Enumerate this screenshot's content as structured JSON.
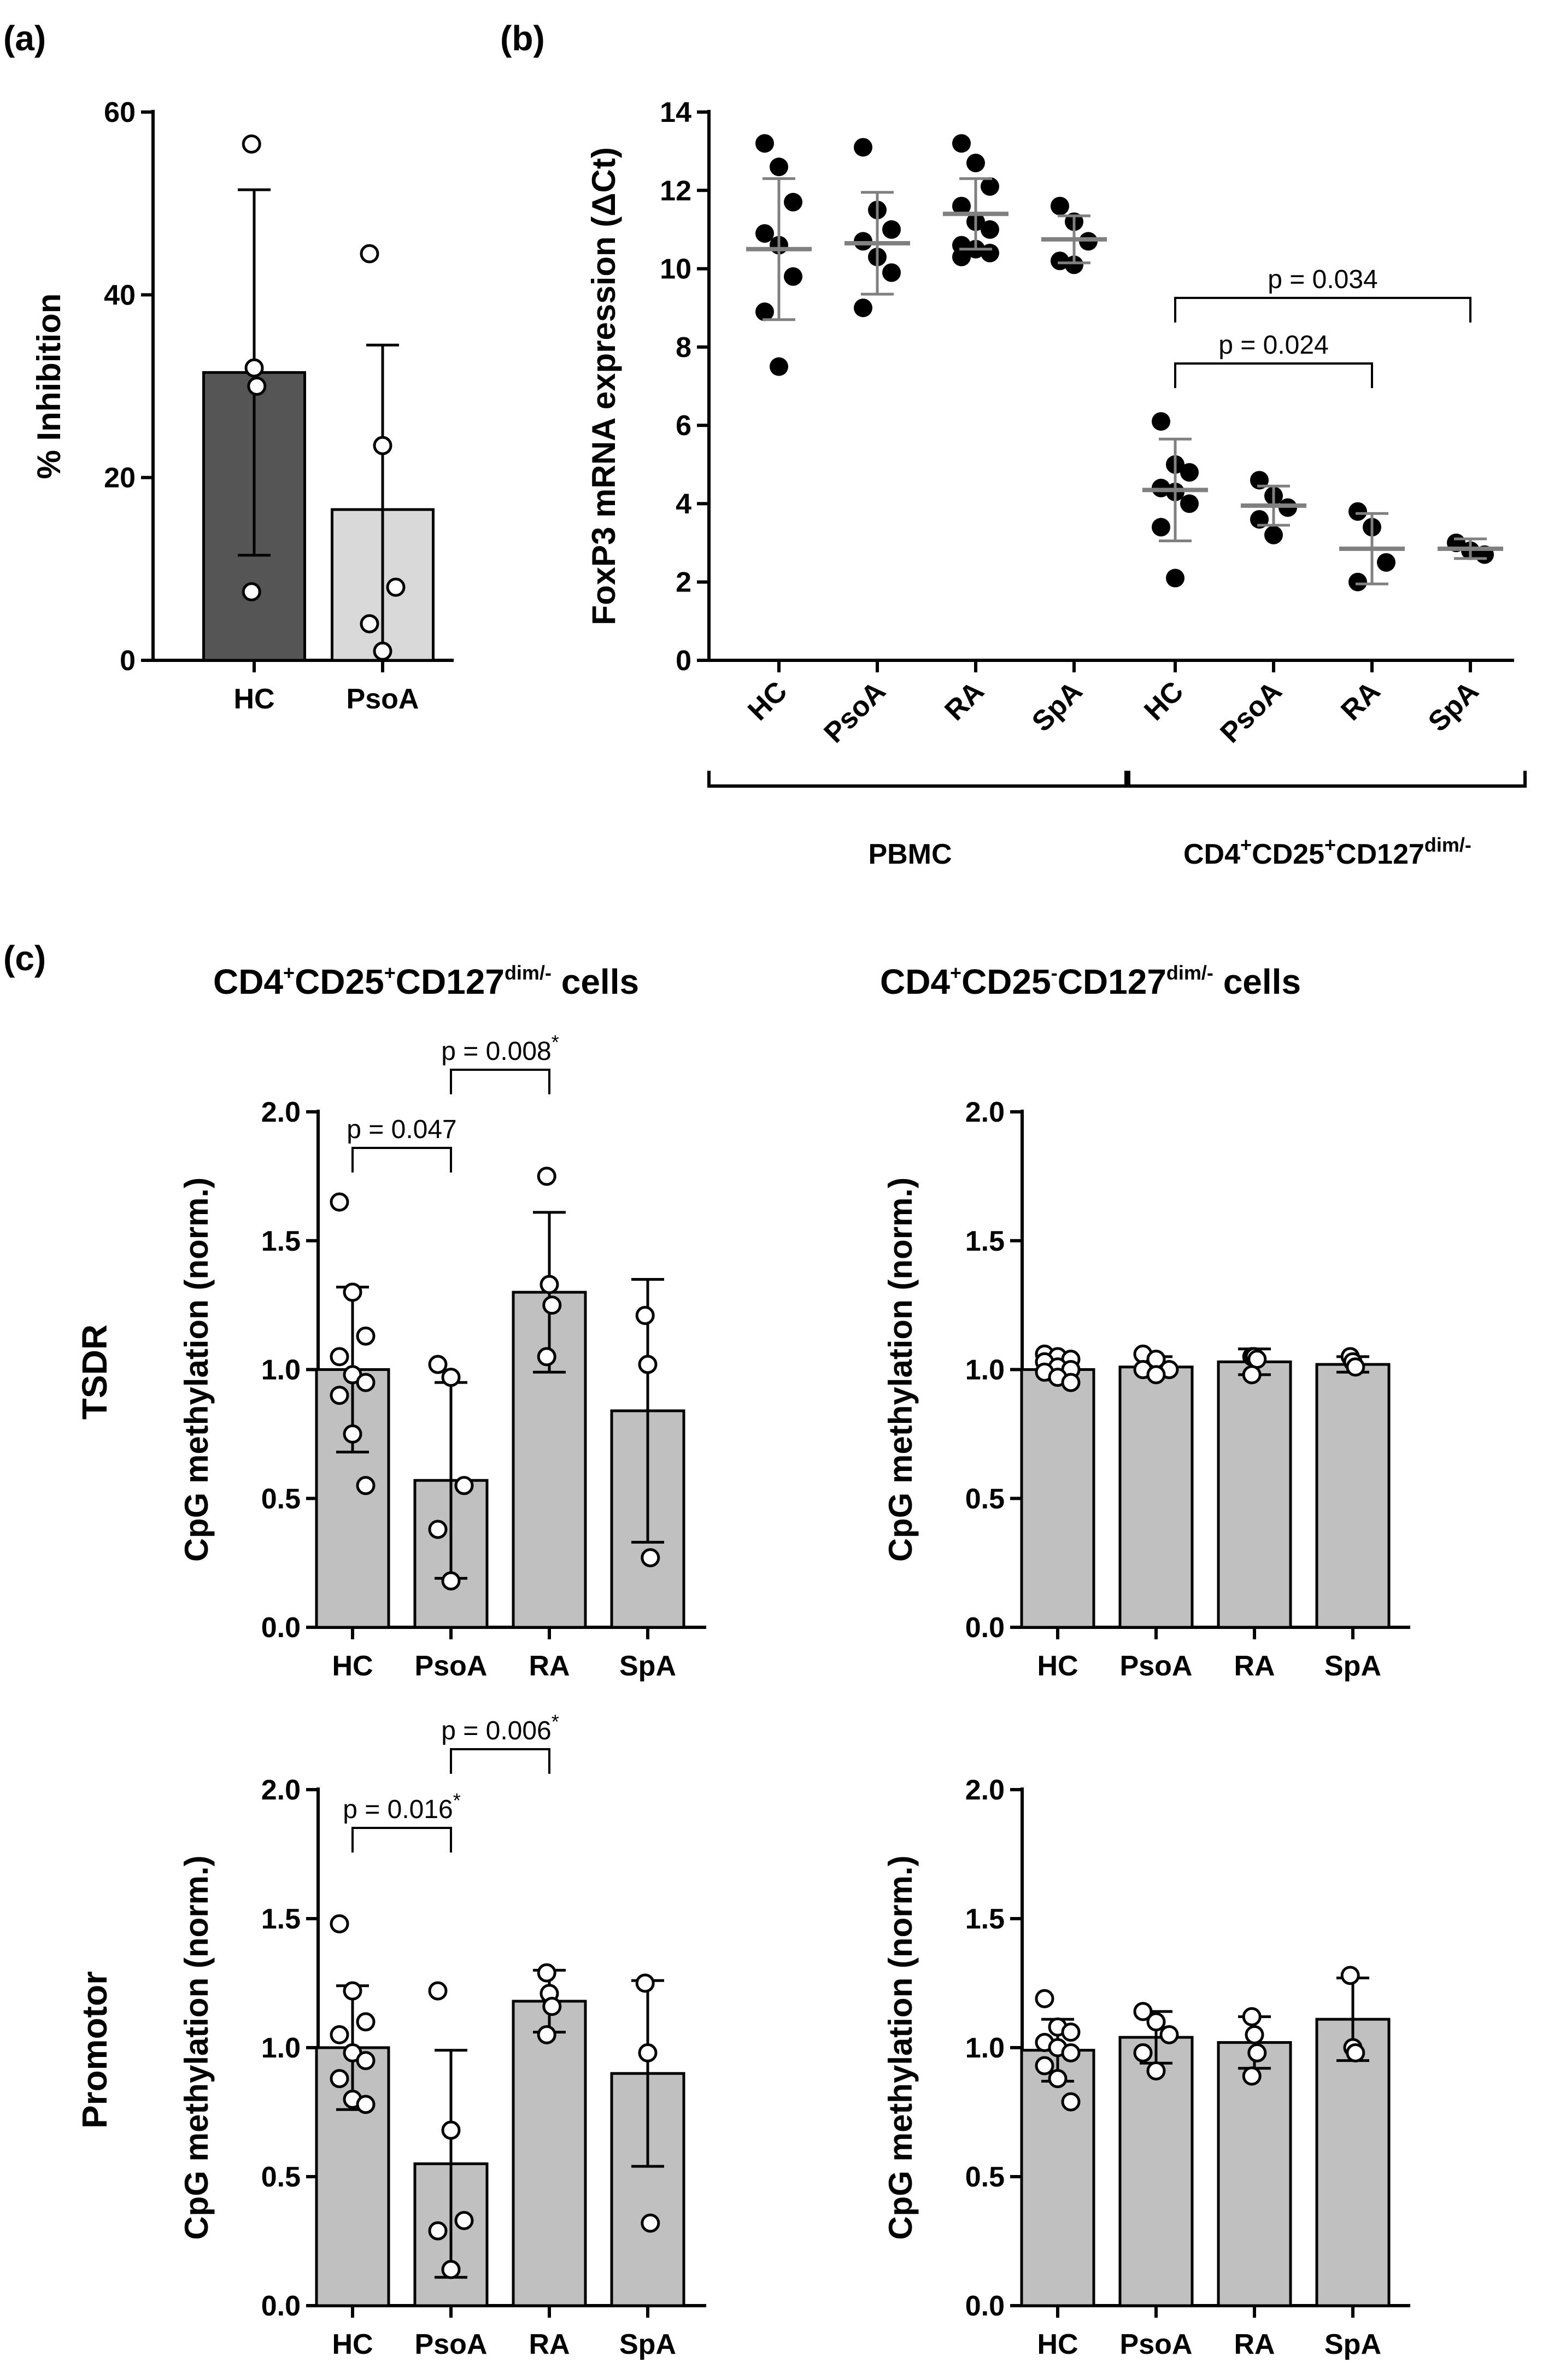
{
  "figure": {
    "panel_labels": [
      "(a)",
      "(b)",
      "(c)"
    ],
    "row_labels": [
      "TSDR",
      "Promotor"
    ],
    "column_headers": [
      {
        "base": "CD4",
        "sup1": "+",
        "mid": "CD25",
        "sup2": "+",
        "base2": "CD127",
        "sup3": "dim/-",
        "tail": " cells"
      },
      {
        "base": "CD4",
        "sup1": "+",
        "mid": "CD25",
        "sup2": "-",
        "base2": "CD127",
        "sup3": "dim/-",
        "tail": " cells"
      }
    ]
  },
  "colors": {
    "dark_bar": "#555555",
    "light_bar": "#d9d9d9",
    "grey_bar": "#c0c0c0",
    "mean_line": "#808080"
  },
  "chart_data": [
    {
      "id": "a",
      "type": "bar",
      "title": "",
      "ylabel": "% Inhibition",
      "ylim": [
        0,
        60
      ],
      "yticks": [
        0,
        20,
        40,
        60
      ],
      "categories": [
        "HC",
        "PsoA"
      ],
      "values": [
        31.5,
        16.5
      ],
      "sd": [
        20.0,
        18.0
      ],
      "points": [
        [
          56.5,
          32.0,
          30.0,
          7.5
        ],
        [
          44.5,
          23.5,
          8.0,
          4.0,
          1.0
        ]
      ]
    },
    {
      "id": "b",
      "type": "scatter",
      "ylabel": "FoxP3 mRNA expression (ΔCt)",
      "ylim": [
        0,
        14
      ],
      "yticks": [
        0,
        2,
        4,
        6,
        8,
        10,
        12,
        14
      ],
      "categories": [
        "HC",
        "PsoA",
        "RA",
        "SpA",
        "HC",
        "PsoA",
        "RA",
        "SpA"
      ],
      "groups": [
        "PBMC",
        "CD4+CD25+CD127dim/-"
      ],
      "group_labels": {
        "pbmc": "PBMC",
        "treg_base": "CD4",
        "treg_sup1": "+",
        "treg_mid": "CD25",
        "treg_sup2": "+",
        "treg_base2": "CD127",
        "treg_sup3": "dim/-"
      },
      "means": [
        10.5,
        10.65,
        11.4,
        10.75,
        4.35,
        3.95,
        2.85,
        2.85
      ],
      "sd": [
        1.8,
        1.3,
        0.9,
        0.6,
        1.3,
        0.5,
        0.9,
        0.25
      ],
      "points": [
        [
          13.2,
          12.6,
          11.7,
          10.9,
          10.6,
          9.8,
          8.9,
          7.5
        ],
        [
          13.1,
          11.5,
          11.0,
          10.7,
          10.3,
          9.9,
          9.0
        ],
        [
          13.2,
          12.7,
          12.1,
          11.6,
          11.2,
          11.0,
          10.6,
          10.5,
          10.4,
          10.3
        ],
        [
          11.6,
          11.2,
          10.7,
          10.2,
          10.1
        ],
        [
          6.1,
          5.0,
          4.8,
          4.4,
          4.3,
          4.0,
          3.4,
          2.1
        ],
        [
          4.6,
          4.2,
          3.9,
          3.6,
          3.2
        ],
        [
          3.8,
          3.4,
          2.5,
          2.0
        ],
        [
          3.0,
          2.8,
          2.7
        ]
      ],
      "annotations": [
        {
          "text": "p = 0.024",
          "from": 4,
          "to": 6
        },
        {
          "text": "p = 0.034",
          "from": 4,
          "to": 7
        }
      ]
    },
    {
      "id": "c_tsdr_pos",
      "type": "bar",
      "ylabel": "CpG methylation (norm.)",
      "ylim": [
        0,
        2.0
      ],
      "yticks": [
        "0.0",
        "0.5",
        "1.0",
        "1.5",
        "2.0"
      ],
      "categories": [
        "HC",
        "PsoA",
        "RA",
        "SpA"
      ],
      "values": [
        1.0,
        0.57,
        1.3,
        0.84
      ],
      "sd": [
        0.32,
        0.38,
        0.31,
        0.51
      ],
      "points": [
        [
          1.65,
          1.3,
          1.13,
          1.05,
          0.98,
          0.95,
          0.9,
          0.75,
          0.55
        ],
        [
          1.02,
          0.97,
          0.55,
          0.38,
          0.18
        ],
        [
          1.75,
          1.33,
          1.25,
          1.05
        ],
        [
          1.21,
          1.02,
          0.27
        ]
      ],
      "annotations": [
        {
          "text": "p = 0.047",
          "star": "",
          "from": 0,
          "to": 1
        },
        {
          "text": "p = 0.008",
          "star": "*",
          "from": 1,
          "to": 2
        }
      ]
    },
    {
      "id": "c_tsdr_neg",
      "type": "bar",
      "ylabel": "CpG methylation (norm.)",
      "ylim": [
        0,
        2.0
      ],
      "yticks": [
        "0.0",
        "0.5",
        "1.0",
        "1.5",
        "2.0"
      ],
      "categories": [
        "HC",
        "PsoA",
        "RA",
        "SpA"
      ],
      "values": [
        1.0,
        1.01,
        1.03,
        1.02
      ],
      "sd": [
        0.04,
        0.04,
        0.05,
        0.03
      ],
      "points": [
        [
          1.06,
          1.05,
          1.04,
          1.03,
          1.01,
          1.0,
          0.99,
          0.97,
          0.95
        ],
        [
          1.06,
          1.04,
          1.0,
          1.0,
          0.98
        ],
        [
          1.05,
          1.05,
          1.04,
          0.98
        ],
        [
          1.05,
          1.03,
          1.01
        ]
      ],
      "annotations": []
    },
    {
      "id": "c_prom_pos",
      "type": "bar",
      "ylabel": "CpG methylation (norm.)",
      "ylim": [
        0,
        2.0
      ],
      "yticks": [
        "0.0",
        "0.5",
        "1.0",
        "1.5",
        "2.0"
      ],
      "categories": [
        "HC",
        "PsoA",
        "RA",
        "SpA"
      ],
      "values": [
        1.0,
        0.55,
        1.18,
        0.9
      ],
      "sd": [
        0.24,
        0.44,
        0.12,
        0.36
      ],
      "points": [
        [
          1.48,
          1.22,
          1.1,
          1.05,
          0.98,
          0.95,
          0.88,
          0.8,
          0.78
        ],
        [
          1.22,
          0.68,
          0.33,
          0.29,
          0.14
        ],
        [
          1.29,
          1.21,
          1.16,
          1.05
        ],
        [
          1.25,
          0.98,
          0.32
        ]
      ],
      "annotations": [
        {
          "text": "p = 0.016",
          "star": "*",
          "from": 0,
          "to": 1
        },
        {
          "text": "p = 0.006",
          "star": "*",
          "from": 1,
          "to": 2
        }
      ]
    },
    {
      "id": "c_prom_neg",
      "type": "bar",
      "ylabel": "CpG methylation (norm.)",
      "ylim": [
        0,
        2.0
      ],
      "yticks": [
        "0.0",
        "0.5",
        "1.0",
        "1.5",
        "2.0"
      ],
      "categories": [
        "HC",
        "PsoA",
        "RA",
        "SpA"
      ],
      "values": [
        0.99,
        1.04,
        1.02,
        1.11
      ],
      "sd": [
        0.12,
        0.1,
        0.1,
        0.16
      ],
      "points": [
        [
          1.19,
          1.08,
          1.06,
          1.02,
          1.0,
          0.98,
          0.93,
          0.88,
          0.79
        ],
        [
          1.14,
          1.1,
          1.05,
          0.98,
          0.91
        ],
        [
          1.12,
          1.05,
          0.98,
          0.89
        ],
        [
          1.28,
          1.0,
          0.98
        ]
      ],
      "annotations": []
    }
  ]
}
